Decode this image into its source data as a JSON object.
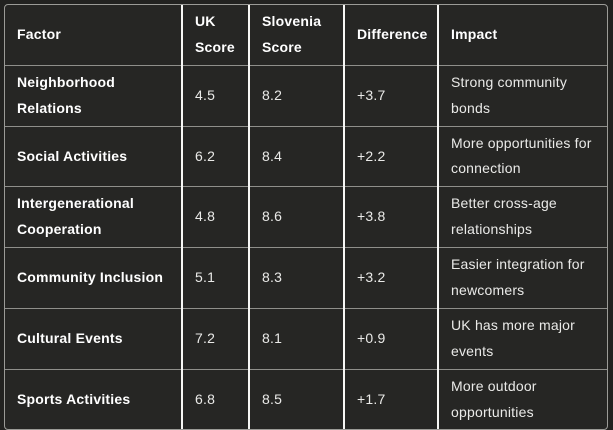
{
  "table": {
    "columns": [
      {
        "key": "factor",
        "label": "Factor"
      },
      {
        "key": "uk",
        "label": "UK Score"
      },
      {
        "key": "slovenia",
        "label": "Slovenia Score"
      },
      {
        "key": "difference",
        "label": "Difference"
      },
      {
        "key": "impact",
        "label": "Impact"
      }
    ],
    "rows": [
      {
        "factor": "Neighborhood Relations",
        "uk": "4.5",
        "slovenia": "8.2",
        "difference": "+3.7",
        "impact": "Strong community bonds"
      },
      {
        "factor": "Social Activities",
        "uk": "6.2",
        "slovenia": "8.4",
        "difference": "+2.2",
        "impact": "More opportunities for connection"
      },
      {
        "factor": "Intergenerational Cooperation",
        "uk": "4.8",
        "slovenia": "8.6",
        "difference": "+3.8",
        "impact": "Better cross-age relationships"
      },
      {
        "factor": "Community Inclusion",
        "uk": "5.1",
        "slovenia": "8.3",
        "difference": "+3.2",
        "impact": "Easier integration for newcomers"
      },
      {
        "factor": "Cultural Events",
        "uk": "7.2",
        "slovenia": "8.1",
        "difference": "+0.9",
        "impact": "UK has more major events"
      },
      {
        "factor": "Sports Activities",
        "uk": "6.8",
        "slovenia": "8.5",
        "difference": "+1.7",
        "impact": "More outdoor opportunities"
      }
    ]
  },
  "chart_data": {
    "type": "table",
    "title": "",
    "columns": [
      "Factor",
      "UK Score",
      "Slovenia Score",
      "Difference",
      "Impact"
    ],
    "rows": [
      [
        "Neighborhood Relations",
        4.5,
        8.2,
        "+3.7",
        "Strong community bonds"
      ],
      [
        "Social Activities",
        6.2,
        8.4,
        "+2.2",
        "More opportunities for connection"
      ],
      [
        "Intergenerational Cooperation",
        4.8,
        8.6,
        "+3.8",
        "Better cross-age relationships"
      ],
      [
        "Community Inclusion",
        5.1,
        8.3,
        "+3.2",
        "Easier integration for newcomers"
      ],
      [
        "Cultural Events",
        7.2,
        8.1,
        "+0.9",
        "UK has more major events"
      ],
      [
        "Sports Activities",
        6.8,
        8.5,
        "+1.7",
        "More outdoor opportunities"
      ]
    ]
  },
  "colors": {
    "page_background": "#222220",
    "cell_background": "#262624",
    "header_text": "#ffffff",
    "body_text": "#eaeae8",
    "column_divider": "#f7f7f5",
    "row_divider": "#8f8f8b",
    "outer_border": "#9b9b97"
  }
}
